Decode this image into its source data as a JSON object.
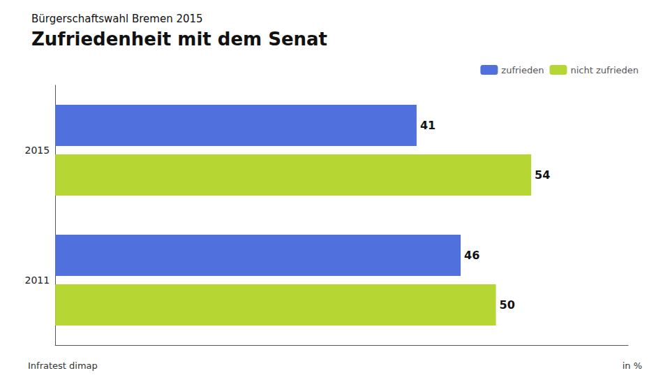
{
  "chart_data": {
    "type": "bar",
    "orientation": "horizontal",
    "subtitle": "Bürgerschaftswahl Bremen 2015",
    "title": "Zufriedenheit mit dem Senat",
    "categories": [
      "2015",
      "2011"
    ],
    "series": [
      {
        "name": "zufrieden",
        "values": [
          41,
          46
        ]
      },
      {
        "name": "nicht zufrieden",
        "values": [
          54,
          50
        ]
      }
    ],
    "xlim": [
      0,
      65
    ],
    "tick_labels": "y",
    "grid": false,
    "legend": "top",
    "data_labels": true,
    "annotations": [
      "Infratest dimap",
      "in %"
    ]
  }
}
